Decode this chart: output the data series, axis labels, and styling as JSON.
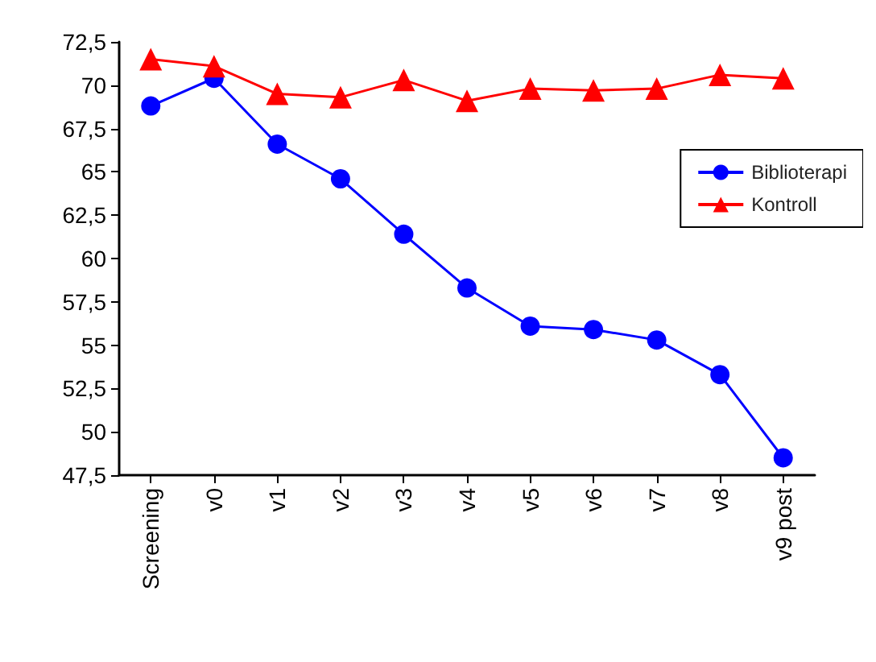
{
  "chart_data": {
    "type": "line",
    "categories": [
      "Screening",
      "v0",
      "v1",
      "v2",
      "v3",
      "v4",
      "v5",
      "v6",
      "v7",
      "v8",
      "v9 post"
    ],
    "series": [
      {
        "name": "Biblioterapi",
        "color": "#0000ff",
        "marker": "circle",
        "values": [
          68.8,
          70.4,
          66.6,
          64.6,
          61.4,
          58.3,
          56.1,
          55.9,
          55.3,
          53.3,
          48.5
        ]
      },
      {
        "name": "Kontroll",
        "color": "#ff0000",
        "marker": "triangle",
        "values": [
          71.5,
          71.1,
          69.5,
          69.3,
          70.3,
          69.1,
          69.8,
          69.7,
          69.8,
          70.6,
          70.4
        ]
      }
    ],
    "ylim": [
      47.5,
      72.5
    ],
    "yticks": [
      {
        "value": 47.5,
        "label": "47,5"
      },
      50,
      {
        "value": 52.5,
        "label": "52,5"
      },
      55,
      {
        "value": 57.5,
        "label": "57,5"
      },
      60,
      {
        "value": 62.5,
        "label": "62,5"
      },
      65,
      {
        "value": 67.5,
        "label": "67,5"
      },
      70,
      {
        "value": 72.5,
        "label": "72,5"
      }
    ],
    "grid": false,
    "legend": "right"
  }
}
